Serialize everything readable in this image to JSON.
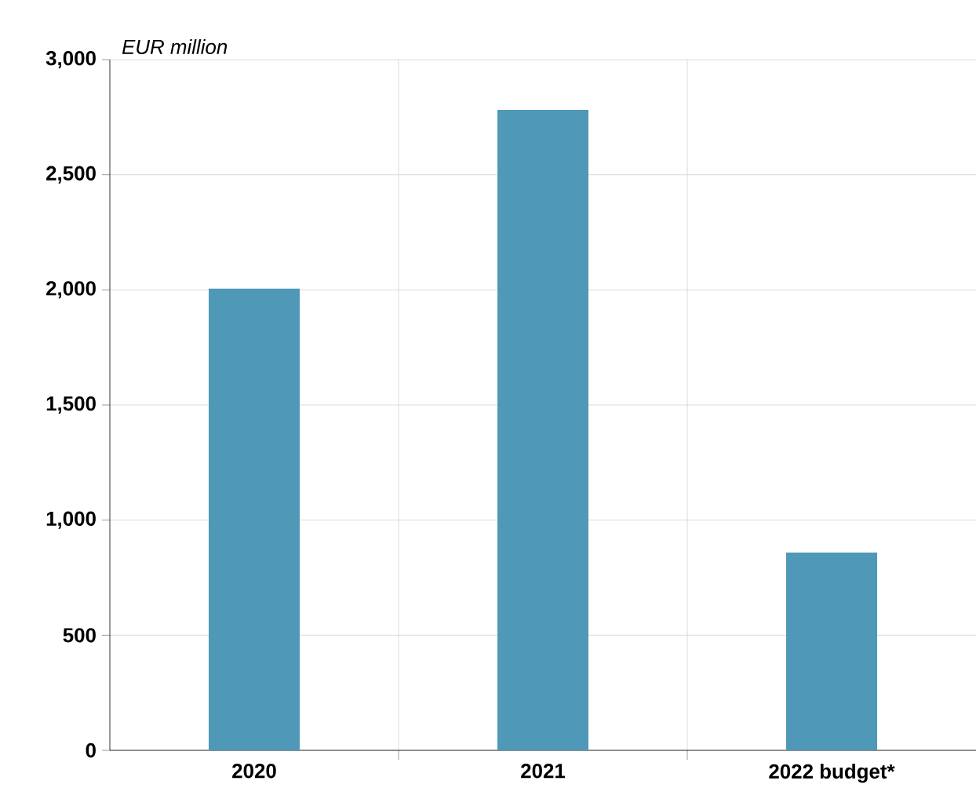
{
  "chart_data": {
    "type": "bar",
    "ylabel": "EUR million",
    "categories": [
      "2020",
      "2021",
      "2022 budget*"
    ],
    "values": [
      2005,
      2782,
      859
    ],
    "color": "#4f98b7",
    "ylim": [
      0,
      3000
    ],
    "yticks": [
      {
        "value": 0,
        "label": "0"
      },
      {
        "value": 500,
        "label": "500"
      },
      {
        "value": 1000,
        "label": "1,000"
      },
      {
        "value": 1500,
        "label": "1,500"
      },
      {
        "value": 2000,
        "label": "2,000"
      },
      {
        "value": 2500,
        "label": "2,500"
      },
      {
        "value": 3000,
        "label": "3,000"
      }
    ],
    "grid": true
  }
}
